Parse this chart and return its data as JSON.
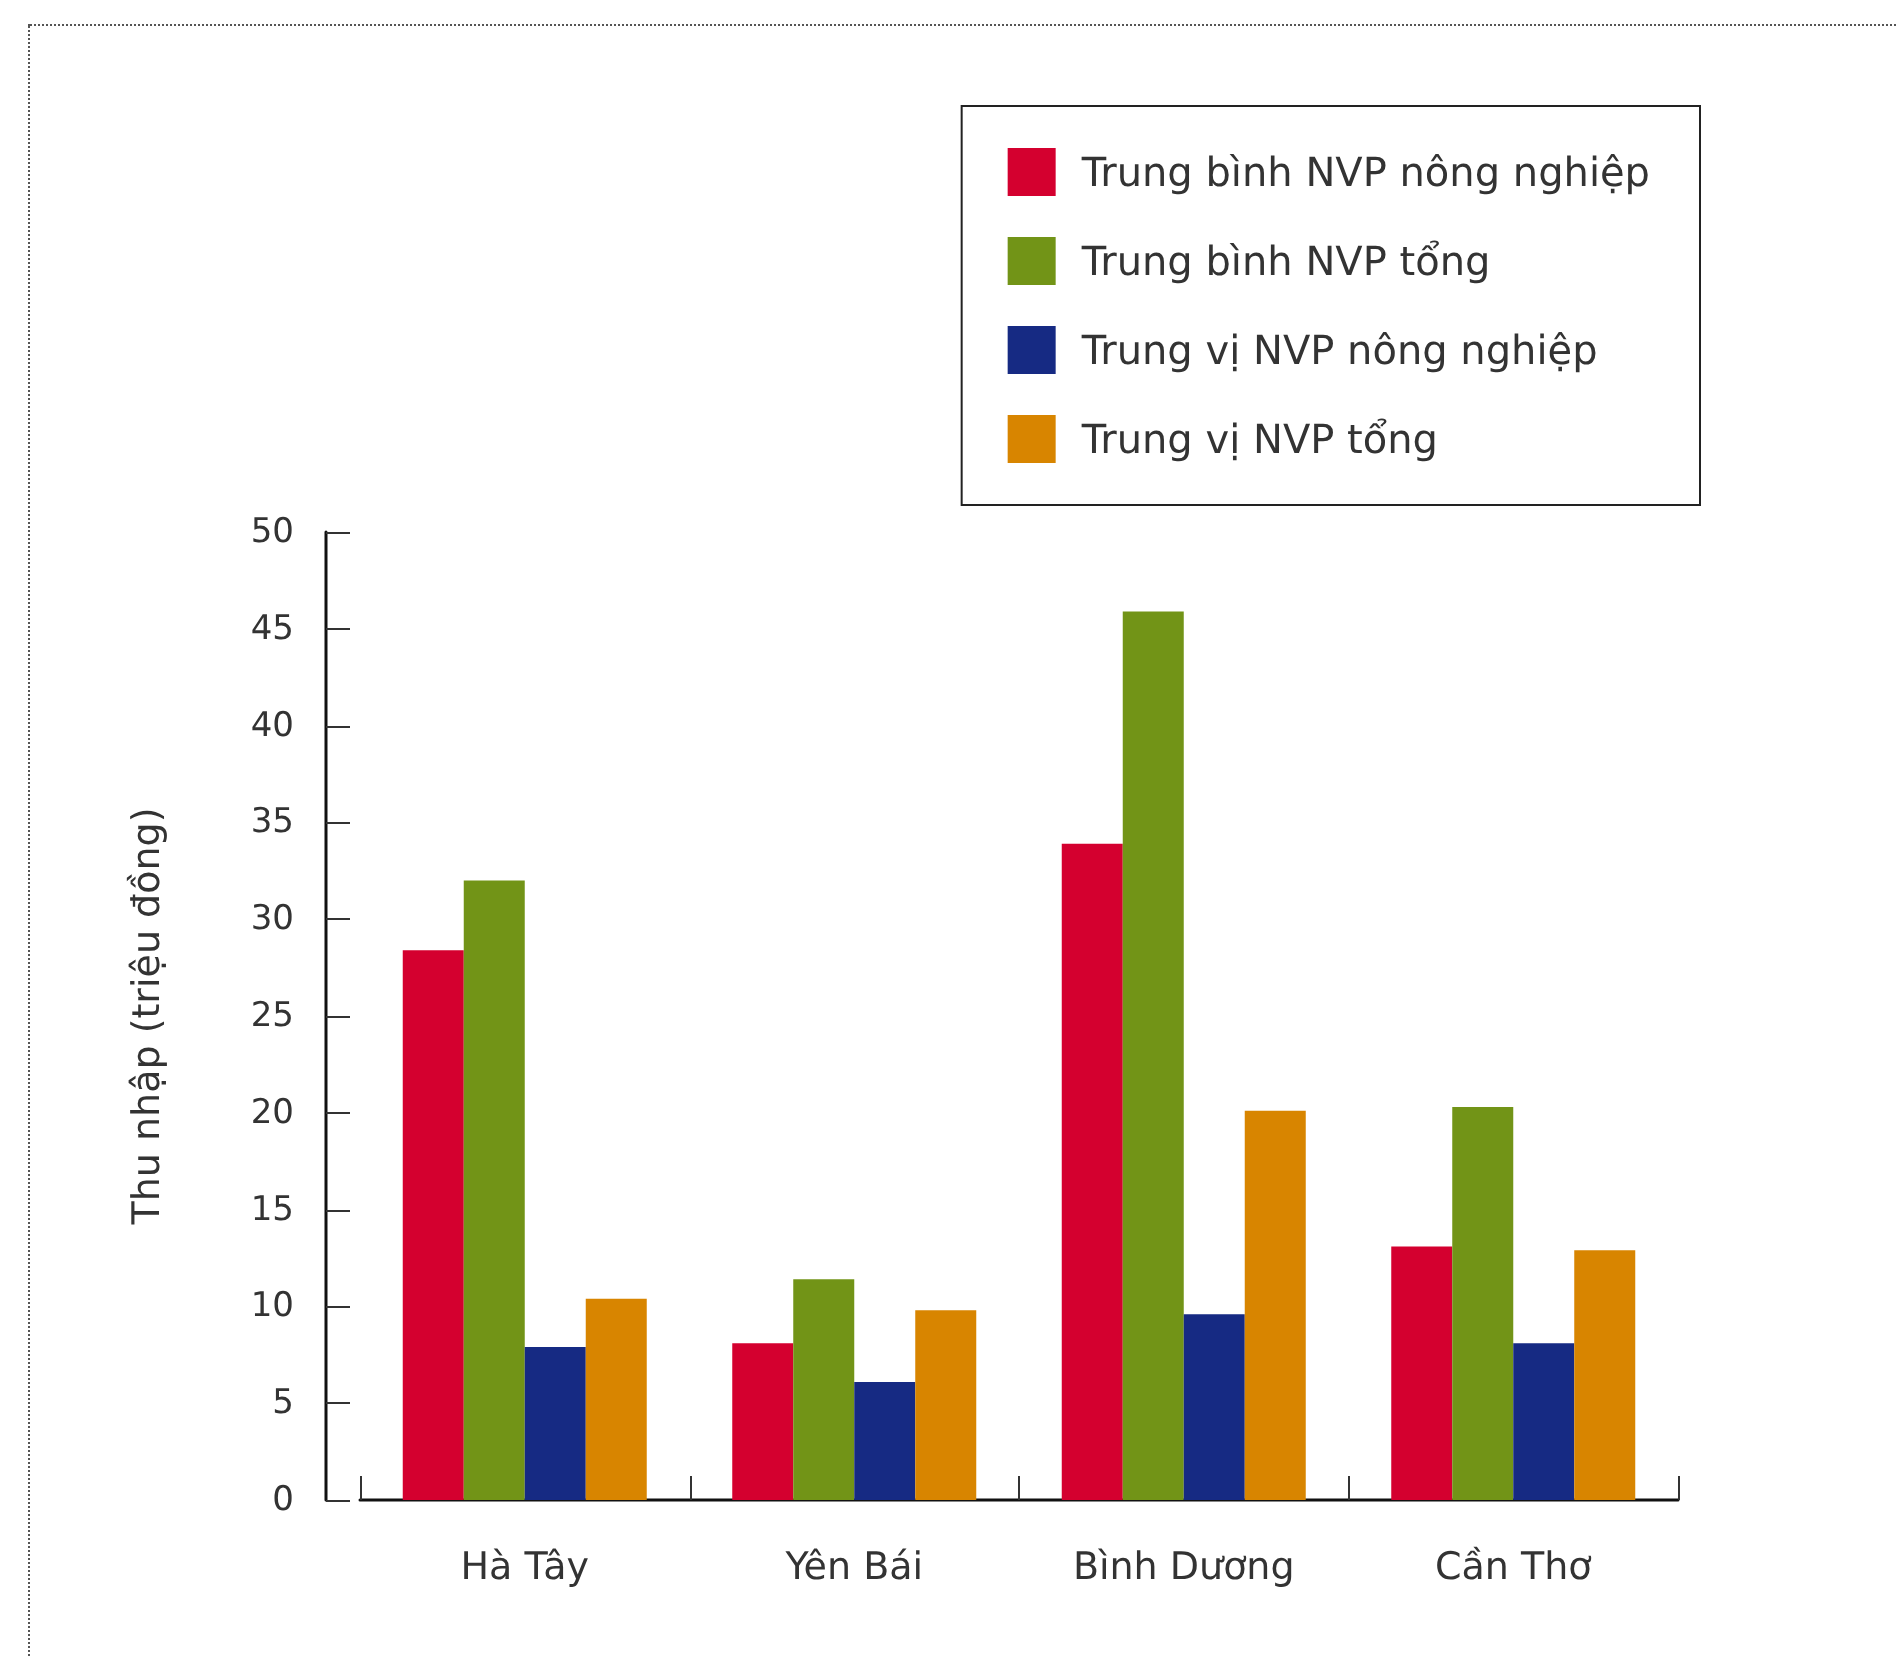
{
  "chart_data": {
    "type": "bar",
    "ylabel": "Thu nhập (triệu đồng)",
    "categories": [
      "Hà Tây",
      "Yên Bái",
      "Bình Dương",
      "Cần Thơ"
    ],
    "series": [
      {
        "name": "Trung bình NVP nông nghiệp",
        "color": "#d4002f",
        "values": [
          28.4,
          8.1,
          33.9,
          13.1
        ]
      },
      {
        "name": "Trung bình NVP tổng",
        "color": "#729417",
        "values": [
          32,
          11.4,
          45.9,
          20.3
        ]
      },
      {
        "name": "Trung vị NVP nông nghiệp",
        "color": "#162a83",
        "values": [
          7.9,
          6.1,
          9.6,
          8.1
        ]
      },
      {
        "name": "Trung vị NVP tổng",
        "color": "#d88500",
        "values": [
          10.4,
          9.8,
          20.1,
          12.9
        ]
      }
    ],
    "ylim": [
      0,
      50
    ],
    "yticks": [
      0,
      5,
      10,
      15,
      20,
      25,
      30,
      35,
      40,
      45,
      50
    ],
    "legend": "top right"
  }
}
